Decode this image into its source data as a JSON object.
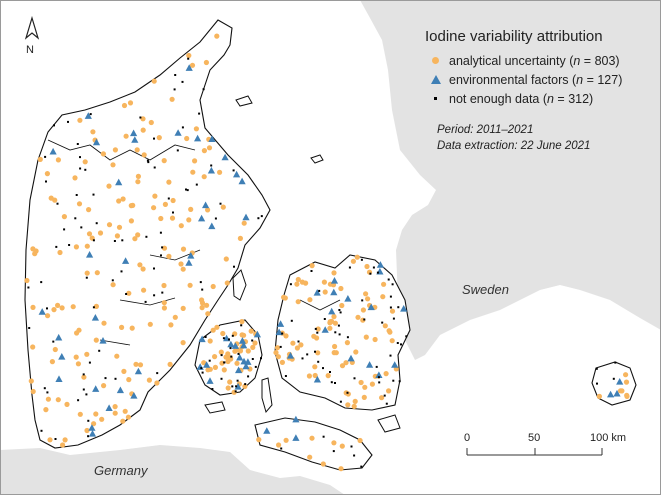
{
  "legend": {
    "title": "Iodine variability attribution",
    "items": [
      {
        "label_prefix": "analytical uncertainty (",
        "n_symbol": "n",
        "label_suffix": " = 803)",
        "symbol": "dot",
        "color": "#f7b55e"
      },
      {
        "label_prefix": "environmental factors (",
        "n_symbol": "n",
        "label_suffix": " = 127)",
        "symbol": "triangle",
        "color": "#3f7fb5"
      },
      {
        "label_prefix": "not enough data (",
        "n_symbol": "n",
        "label_suffix": " = 312)",
        "symbol": "square",
        "color": "#000000"
      }
    ]
  },
  "notes": {
    "period": "Period: 2011–2021",
    "extraction": "Data extraction: 22 June 2021"
  },
  "places": {
    "sweden": "Sweden",
    "germany": "Germany"
  },
  "north_arrow": {
    "label": "N"
  },
  "scale_bar": {
    "ticks": [
      "0",
      "50",
      "100 km"
    ]
  },
  "colors": {
    "land": "#ffffff",
    "sea": "#ffffff",
    "neighbor_land": "#e3e3e3",
    "coastline": "#111111",
    "analytical": "#f7b55e",
    "environmental": "#3f7fb5",
    "not_enough": "#000000"
  }
}
